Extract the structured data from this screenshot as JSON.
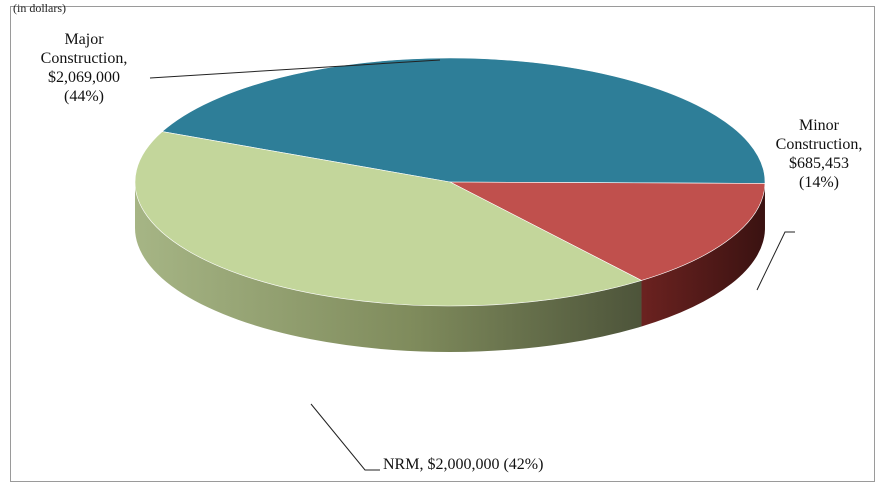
{
  "header": {
    "cut_caption": "(in dollars)"
  },
  "chart_data": {
    "type": "pie",
    "three_d": true,
    "title": "",
    "slices": [
      {
        "name": "Major Construction",
        "value": 2069000,
        "value_label": "$2,069,000",
        "percent_label": "(44%)",
        "color": "#2e7e98"
      },
      {
        "name": "Minor Construction",
        "value": 685453,
        "value_label": "$685,453",
        "percent_label": "(14%)",
        "color": "#c0504d"
      },
      {
        "name": "NRM",
        "value": 2000000,
        "value_label": "$2,000,000",
        "percent_label": "(42%)",
        "color": "#c3d69b"
      }
    ],
    "labels": {
      "major": {
        "line1": "Major",
        "line2": "Construction,",
        "line3": "$2,069,000",
        "line4": "(44%)"
      },
      "minor": {
        "line1": "Minor",
        "line2": "Construction,",
        "line3": "$685,453",
        "line4": "(14%)"
      },
      "nrm": {
        "line1": "NRM, $2,000,000 (42%)"
      }
    },
    "legend": "none"
  }
}
